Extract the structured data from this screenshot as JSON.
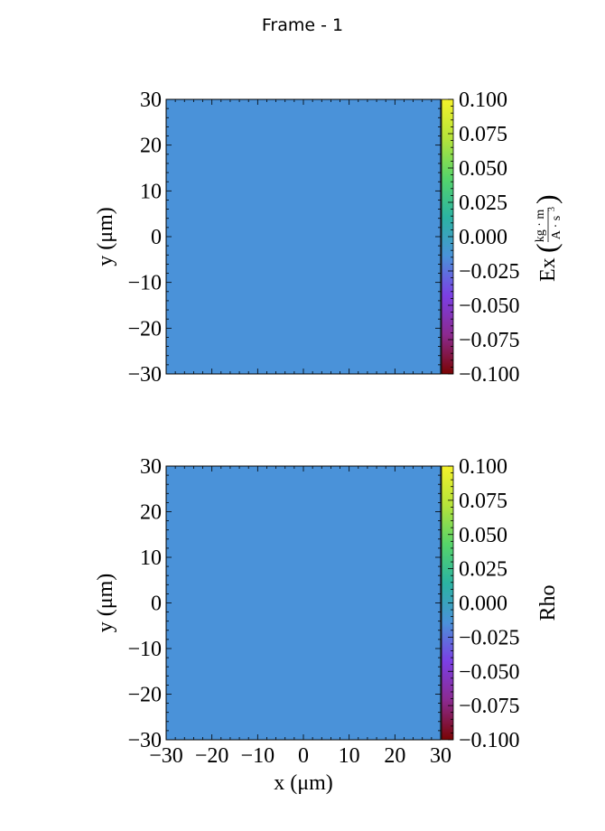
{
  "figure": {
    "title": "Frame - 1"
  },
  "colormap": {
    "name": "turbo-like",
    "stops": [
      "#7a0403",
      "#8b2a8f",
      "#7b3fe4",
      "#4a92d9",
      "#2bb3a2",
      "#56d46a",
      "#b5e43a",
      "#f4f12a"
    ]
  },
  "chart_data": [
    {
      "type": "heatmap",
      "title": "",
      "xlabel": "",
      "ylabel": "y  (μm)",
      "xlim": [
        -30,
        30
      ],
      "ylim": [
        -30,
        30
      ],
      "x_ticks": [],
      "y_ticks": [
        "30",
        "20",
        "10",
        "0",
        "−10",
        "−20",
        "−30"
      ],
      "field_value": 0.0,
      "field_color": "#4a92d9",
      "colorbar": {
        "label_main": "Ex",
        "label_unit_num": "kg · m",
        "label_unit_den": "A · s",
        "label_unit_den_exp": "3",
        "range": [
          -0.1,
          0.1
        ],
        "ticks": [
          "0.100",
          "0.075",
          "0.050",
          "0.025",
          "0.000",
          "−0.025",
          "−0.050",
          "−0.075",
          "−0.100"
        ]
      }
    },
    {
      "type": "heatmap",
      "title": "",
      "xlabel": "x  (μm)",
      "ylabel": "y  (μm)",
      "xlim": [
        -30,
        30
      ],
      "ylim": [
        -30,
        30
      ],
      "x_ticks": [
        "−30",
        "−20",
        "−10",
        "0",
        "10",
        "20",
        "30"
      ],
      "y_ticks": [
        "30",
        "20",
        "10",
        "0",
        "−10",
        "−20",
        "−30"
      ],
      "field_value": 0.0,
      "field_color": "#4a92d9",
      "colorbar": {
        "label_main": "Rho",
        "range": [
          -0.1,
          0.1
        ],
        "ticks": [
          "0.100",
          "0.075",
          "0.050",
          "0.025",
          "0.000",
          "−0.025",
          "−0.050",
          "−0.075",
          "−0.100"
        ]
      }
    }
  ]
}
